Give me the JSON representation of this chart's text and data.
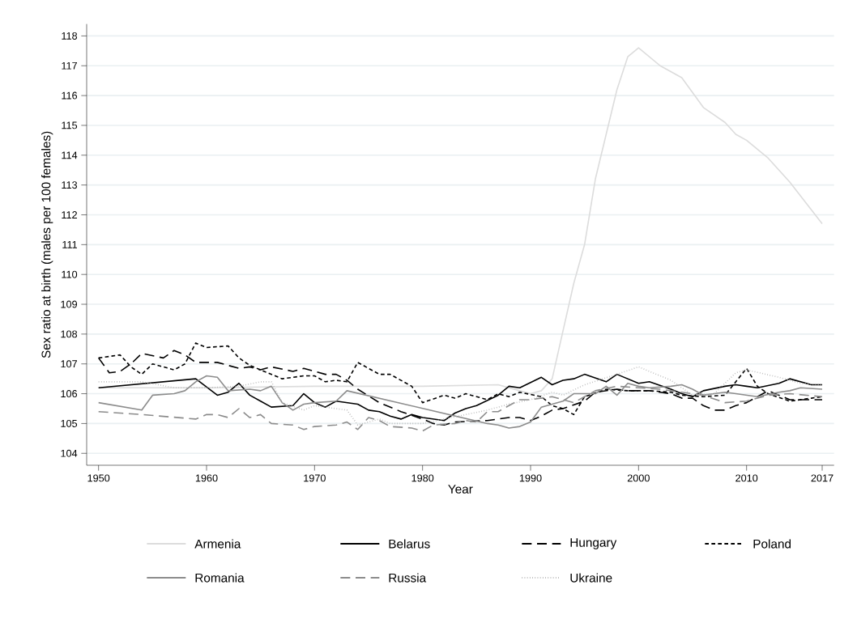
{
  "chart_data": {
    "type": "line",
    "xlabel": "Year",
    "ylabel": "Sex ratio at birth (males per 100 females)",
    "xlim": [
      1948.9,
      2018.1
    ],
    "xticks": [
      1950,
      1960,
      1970,
      1980,
      1990,
      2000,
      2010,
      2017
    ],
    "ylim": [
      103.6,
      118.4
    ],
    "yticks": [
      104,
      105,
      106,
      107,
      108,
      109,
      110,
      111,
      112,
      113,
      114,
      115,
      116,
      117,
      118
    ],
    "grid": "y",
    "legend": "bottom",
    "series": [
      {
        "name": "Armenia",
        "color": "#dcdcdc",
        "line_style": "solid",
        "x": [
          1950,
          1960,
          1970,
          1980,
          1987,
          1989,
          1990,
          1991,
          1992,
          1993,
          1994,
          1995,
          1996,
          1997,
          1998,
          1999,
          2000,
          2002,
          2004,
          2006,
          2008,
          2009,
          2010,
          2012,
          2014,
          2017
        ],
        "values": [
          106.2,
          106.2,
          106.25,
          106.25,
          106.3,
          106.1,
          106.0,
          106.1,
          106.5,
          108.1,
          109.7,
          111.0,
          113.2,
          114.7,
          116.2,
          117.3,
          117.6,
          117.0,
          116.6,
          115.6,
          115.1,
          114.7,
          114.5,
          113.9,
          113.1,
          111.7
        ]
      },
      {
        "name": "Belarus",
        "color": "#000000",
        "line_style": "solid",
        "x": [
          1950,
          1959,
          1961,
          1962,
          1963,
          1964,
          1965,
          1966,
          1968,
          1969,
          1970,
          1971,
          1972,
          1974,
          1975,
          1976,
          1977,
          1978,
          1979,
          1980,
          1982,
          1983,
          1984,
          1985,
          1987,
          1988,
          1989,
          1991,
          1992,
          1993,
          1994,
          1995,
          1997,
          1998,
          2000,
          2001,
          2003,
          2004,
          2005,
          2006,
          2008,
          2009,
          2010,
          2011,
          2013,
          2014,
          2016,
          2017
        ],
        "values": [
          106.2,
          106.5,
          105.95,
          106.05,
          106.35,
          105.95,
          105.75,
          105.55,
          105.6,
          106.0,
          105.7,
          105.55,
          105.75,
          105.65,
          105.45,
          105.4,
          105.25,
          105.15,
          105.3,
          105.2,
          105.1,
          105.35,
          105.5,
          105.6,
          105.95,
          106.25,
          106.2,
          106.55,
          106.3,
          106.45,
          106.5,
          106.65,
          106.4,
          106.65,
          106.35,
          106.4,
          106.15,
          106.0,
          105.9,
          106.1,
          106.25,
          106.3,
          106.25,
          106.2,
          106.35,
          106.5,
          106.3,
          106.3
        ]
      },
      {
        "name": "Hungary",
        "color": "#000000",
        "line_style": "long dashed",
        "x": [
          1950,
          1951,
          1952,
          1953,
          1954,
          1956,
          1957,
          1958,
          1959,
          1961,
          1963,
          1964,
          1965,
          1966,
          1968,
          1969,
          1971,
          1972,
          1973,
          1974,
          1976,
          1978,
          1980,
          1981,
          1982,
          1983,
          1986,
          1988,
          1989,
          1990,
          1991,
          1992,
          1993,
          1995,
          1996,
          1998,
          1999,
          2001,
          2003,
          2004,
          2005,
          2006,
          2007,
          2008,
          2009,
          2010,
          2012,
          2013,
          2014,
          2016,
          2017
        ],
        "values": [
          107.2,
          106.7,
          106.75,
          107.0,
          107.35,
          107.2,
          107.45,
          107.3,
          107.05,
          107.05,
          106.85,
          106.9,
          106.8,
          106.9,
          106.75,
          106.85,
          106.65,
          106.65,
          106.45,
          106.15,
          105.7,
          105.4,
          105.15,
          105.0,
          104.95,
          105.05,
          105.1,
          105.2,
          105.2,
          105.1,
          105.25,
          105.45,
          105.5,
          105.75,
          106.05,
          106.15,
          106.1,
          106.1,
          106.0,
          105.85,
          105.85,
          105.6,
          105.45,
          105.45,
          105.6,
          105.7,
          106.1,
          105.95,
          105.8,
          105.8,
          105.8
        ]
      },
      {
        "name": "Poland",
        "color": "#000000",
        "line_style": "dashed",
        "x": [
          1950,
          1952,
          1953,
          1954,
          1955,
          1957,
          1958,
          1959,
          1960,
          1962,
          1963,
          1964,
          1965,
          1967,
          1969,
          1970,
          1971,
          1972,
          1973,
          1974,
          1976,
          1977,
          1979,
          1980,
          1982,
          1983,
          1984,
          1986,
          1987,
          1988,
          1989,
          1991,
          1992,
          1993,
          1994,
          1995,
          1997,
          1999,
          2001,
          2003,
          2004,
          2006,
          2008,
          2010,
          2011,
          2012,
          2014,
          2016,
          2017
        ],
        "values": [
          107.2,
          107.3,
          106.9,
          106.65,
          107.0,
          106.8,
          107.0,
          107.7,
          107.55,
          107.6,
          107.2,
          106.95,
          106.8,
          106.5,
          106.6,
          106.6,
          106.4,
          106.45,
          106.4,
          107.05,
          106.65,
          106.65,
          106.25,
          105.7,
          105.95,
          105.85,
          106.0,
          105.8,
          106.0,
          105.9,
          106.05,
          105.9,
          105.6,
          105.5,
          105.3,
          105.9,
          106.15,
          106.1,
          106.1,
          106.05,
          105.95,
          105.9,
          105.95,
          106.85,
          106.25,
          106.0,
          105.75,
          105.85,
          105.9
        ]
      },
      {
        "name": "Romania",
        "color": "#8c8c8c",
        "line_style": "solid",
        "x": [
          1950,
          1954,
          1955,
          1957,
          1958,
          1959,
          1960,
          1961,
          1962,
          1964,
          1965,
          1966,
          1967,
          1968,
          1969,
          1970,
          1972,
          1973,
          1986,
          1987,
          1988,
          1989,
          1990,
          1991,
          1992,
          1993,
          1994,
          1996,
          1997,
          1998,
          1999,
          2000,
          2001,
          2003,
          2004,
          2005,
          2006,
          2007,
          2008,
          2009,
          2011,
          2013,
          2014,
          2015,
          2017
        ],
        "values": [
          105.7,
          105.45,
          105.95,
          106.0,
          106.1,
          106.4,
          106.6,
          106.55,
          106.1,
          106.15,
          106.1,
          106.25,
          105.7,
          105.45,
          105.65,
          105.7,
          105.75,
          106.1,
          105.0,
          104.95,
          104.85,
          104.9,
          105.05,
          105.55,
          105.65,
          105.75,
          106.0,
          106.0,
          106.25,
          105.95,
          106.35,
          106.25,
          106.2,
          106.25,
          106.3,
          106.15,
          105.95,
          106.0,
          106.05,
          106.0,
          105.9,
          106.05,
          106.1,
          106.2,
          106.15
        ]
      },
      {
        "name": "Russia",
        "color": "#8c8c8c",
        "line_style": "long dashed",
        "x": [
          1950,
          1954,
          1959,
          1960,
          1961,
          1962,
          1963,
          1964,
          1965,
          1966,
          1968,
          1969,
          1970,
          1972,
          1973,
          1974,
          1975,
          1976,
          1977,
          1979,
          1980,
          1981,
          1983,
          1984,
          1985,
          1986,
          1987,
          1988,
          1989,
          1990,
          1992,
          1994,
          1995,
          1996,
          1998,
          2000,
          2002,
          2004,
          2006,
          2008,
          2010,
          2012,
          2014,
          2017
        ],
        "values": [
          105.4,
          105.3,
          105.15,
          105.3,
          105.3,
          105.2,
          105.5,
          105.2,
          105.3,
          105.0,
          104.95,
          104.8,
          104.9,
          104.95,
          105.05,
          104.8,
          105.2,
          105.1,
          104.9,
          104.85,
          104.75,
          104.95,
          105.0,
          105.1,
          105.05,
          105.4,
          105.4,
          105.6,
          105.8,
          105.8,
          105.9,
          105.7,
          105.9,
          106.1,
          106.25,
          106.2,
          106.15,
          106.05,
          105.95,
          105.7,
          105.75,
          105.95,
          106.0,
          105.9
        ]
      },
      {
        "name": "Ukraine",
        "color": "#b4b4b4",
        "line_style": "dotted",
        "x": [
          1950,
          1954,
          1957,
          1960,
          1963,
          1965,
          1966,
          1967,
          1969,
          1970,
          1972,
          1973,
          1974,
          1976,
          1977,
          1980,
          1984,
          1986,
          1988,
          1990,
          1992,
          1993,
          1995,
          1998,
          2000,
          2003,
          2005,
          2007,
          2009,
          2010,
          2013,
          2015,
          2017
        ],
        "values": [
          106.4,
          106.4,
          106.2,
          106.2,
          106.25,
          106.4,
          106.4,
          105.7,
          105.45,
          105.6,
          105.5,
          105.45,
          104.95,
          105.15,
          105.0,
          105.0,
          105.3,
          105.45,
          105.65,
          105.8,
          106.05,
          105.95,
          106.3,
          106.65,
          106.9,
          106.45,
          105.95,
          106.0,
          106.7,
          106.8,
          106.55,
          106.35,
          106.3
        ]
      }
    ]
  }
}
